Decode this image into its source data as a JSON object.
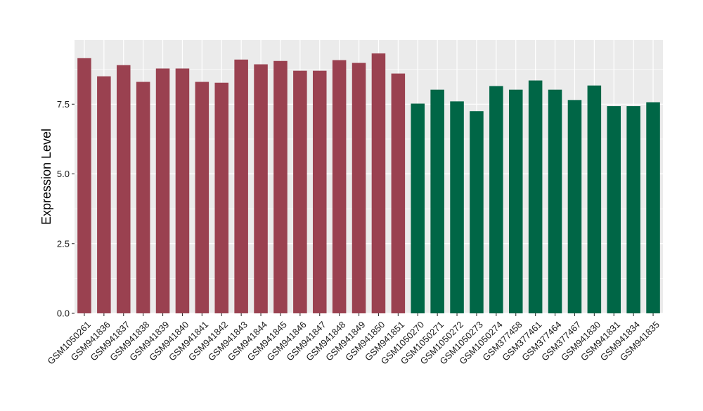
{
  "chart_data": {
    "type": "bar",
    "xlabel": "",
    "ylabel": "Expression Level",
    "ylim": [
      0,
      9.8
    ],
    "yticks": [
      0.0,
      2.5,
      5.0,
      7.5
    ],
    "ytick_labels": [
      "0.0",
      "2.5",
      "5.0",
      "7.5"
    ],
    "grid": true,
    "categories": [
      "GSM1050261",
      "GSM941836",
      "GSM941837",
      "GSM941838",
      "GSM941839",
      "GSM941840",
      "GSM941841",
      "GSM941842",
      "GSM941843",
      "GSM941844",
      "GSM941845",
      "GSM941846",
      "GSM941847",
      "GSM941848",
      "GSM941849",
      "GSM941850",
      "GSM941851",
      "GSM1050270",
      "GSM1050271",
      "GSM1050272",
      "GSM1050273",
      "GSM1050274",
      "GSM377458",
      "GSM377461",
      "GSM377464",
      "GSM377467",
      "GSM941830",
      "GSM941831",
      "GSM941834",
      "GSM941835"
    ],
    "values": [
      9.15,
      8.5,
      8.9,
      8.3,
      8.78,
      8.78,
      8.3,
      8.27,
      9.1,
      8.93,
      9.05,
      8.7,
      8.7,
      9.08,
      8.98,
      9.32,
      8.6,
      7.52,
      8.02,
      7.6,
      7.25,
      8.15,
      8.02,
      8.35,
      8.02,
      7.65,
      8.17,
      7.43,
      7.43,
      7.57
    ],
    "bar_colors": [
      "#9a4150",
      "#9a4150",
      "#9a4150",
      "#9a4150",
      "#9a4150",
      "#9a4150",
      "#9a4150",
      "#9a4150",
      "#9a4150",
      "#9a4150",
      "#9a4150",
      "#9a4150",
      "#9a4150",
      "#9a4150",
      "#9a4150",
      "#9a4150",
      "#9a4150",
      "#006646",
      "#006646",
      "#006646",
      "#006646",
      "#006646",
      "#006646",
      "#006646",
      "#006646",
      "#006646",
      "#006646",
      "#006646",
      "#006646",
      "#006646"
    ],
    "colors": {
      "panel_background": "#ebebeb",
      "gridline": "#ffffff",
      "axis_text": "#1a1a1a",
      "tick": "#333333"
    }
  }
}
